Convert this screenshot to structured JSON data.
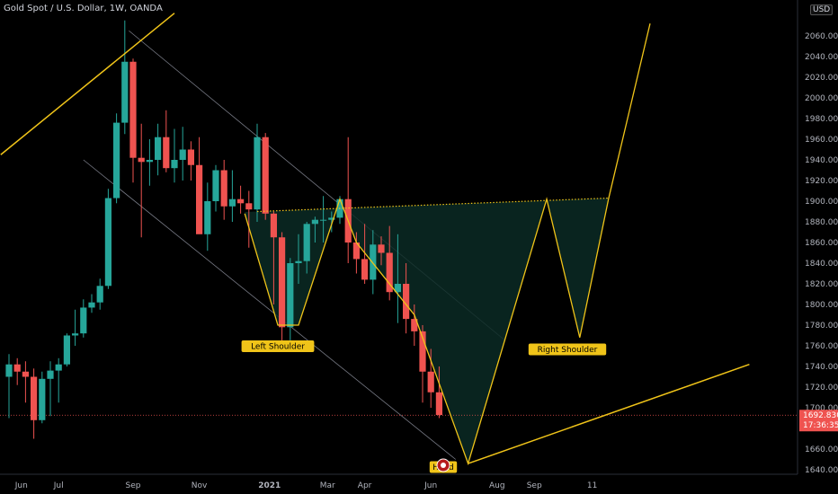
{
  "header": {
    "title": "Gold Spot / U.S. Dollar, 1W, OANDA",
    "currency": "USD"
  },
  "chart_data": {
    "type": "candlestick",
    "title": "Gold Spot / U.S. Dollar, 1W, OANDA",
    "y_axis": {
      "ticks": [
        1640,
        1660,
        1680,
        1700,
        1720,
        1740,
        1760,
        1780,
        1800,
        1820,
        1840,
        1860,
        1880,
        1900,
        1920,
        1940,
        1960,
        1980,
        2000,
        2020,
        2040,
        2060
      ],
      "tick_labels": [
        "1640.000",
        "1660.000",
        "1680.000",
        "1700.000",
        "1720.000",
        "1740.000",
        "1760.000",
        "1780.000",
        "1800.000",
        "1820.000",
        "1840.000",
        "1860.000",
        "1880.000",
        "1900.000",
        "1920.000",
        "1940.000",
        "1960.000",
        "1980.000",
        "2000.000",
        "2020.000",
        "2040.000",
        "2060.000"
      ],
      "range": [
        1633,
        2082
      ]
    },
    "x_axis": {
      "tick_labels": [
        "Jun",
        "Jul",
        "Sep",
        "Nov",
        "2021",
        "Mar",
        "Apr",
        "Jun",
        "Aug",
        "Sep",
        "11"
      ],
      "tick_weeks": [
        3,
        12,
        30,
        46,
        63,
        77,
        86,
        102,
        118,
        127,
        141
      ]
    },
    "current_price": {
      "value": 1692.83,
      "label": "1692.830",
      "countdown": "17:36:35",
      "color": "#ef5350"
    },
    "colors": {
      "up": "#26a69a",
      "down": "#ef5350",
      "pattern": "#f0c419",
      "channel": "#787b86"
    },
    "candles": [
      {
        "w": 0,
        "o": 1730,
        "h": 1752,
        "l": 1690,
        "c": 1742
      },
      {
        "w": 2,
        "o": 1742,
        "h": 1748,
        "l": 1722,
        "c": 1735
      },
      {
        "w": 4,
        "o": 1735,
        "h": 1745,
        "l": 1705,
        "c": 1730
      },
      {
        "w": 6,
        "o": 1730,
        "h": 1738,
        "l": 1670,
        "c": 1688
      },
      {
        "w": 8,
        "o": 1688,
        "h": 1735,
        "l": 1685,
        "c": 1728
      },
      {
        "w": 10,
        "o": 1728,
        "h": 1745,
        "l": 1692,
        "c": 1736
      },
      {
        "w": 12,
        "o": 1736,
        "h": 1748,
        "l": 1705,
        "c": 1742
      },
      {
        "w": 14,
        "o": 1742,
        "h": 1772,
        "l": 1740,
        "c": 1770
      },
      {
        "w": 16,
        "o": 1770,
        "h": 1795,
        "l": 1760,
        "c": 1772
      },
      {
        "w": 18,
        "o": 1772,
        "h": 1805,
        "l": 1768,
        "c": 1797
      },
      {
        "w": 20,
        "o": 1797,
        "h": 1810,
        "l": 1792,
        "c": 1802
      },
      {
        "w": 22,
        "o": 1802,
        "h": 1825,
        "l": 1795,
        "c": 1818
      },
      {
        "w": 24,
        "o": 1818,
        "h": 1912,
        "l": 1815,
        "c": 1903
      },
      {
        "w": 26,
        "o": 1903,
        "h": 1985,
        "l": 1898,
        "c": 1976
      },
      {
        "w": 28,
        "o": 1976,
        "h": 2075,
        "l": 1965,
        "c": 2035
      },
      {
        "w": 30,
        "o": 2035,
        "h": 2038,
        "l": 1918,
        "c": 1942
      },
      {
        "w": 32,
        "o": 1942,
        "h": 1975,
        "l": 1865,
        "c": 1938
      },
      {
        "w": 34,
        "o": 1938,
        "h": 1960,
        "l": 1915,
        "c": 1940
      },
      {
        "w": 36,
        "o": 1940,
        "h": 1975,
        "l": 1925,
        "c": 1962
      },
      {
        "w": 38,
        "o": 1962,
        "h": 1988,
        "l": 1928,
        "c": 1932
      },
      {
        "w": 40,
        "o": 1932,
        "h": 1970,
        "l": 1918,
        "c": 1940
      },
      {
        "w": 42,
        "o": 1940,
        "h": 1972,
        "l": 1920,
        "c": 1950
      },
      {
        "w": 44,
        "o": 1950,
        "h": 1958,
        "l": 1920,
        "c": 1935
      },
      {
        "w": 46,
        "o": 1935,
        "h": 1962,
        "l": 1870,
        "c": 1868
      },
      {
        "w": 48,
        "o": 1868,
        "h": 1918,
        "l": 1852,
        "c": 1900
      },
      {
        "w": 50,
        "o": 1900,
        "h": 1935,
        "l": 1890,
        "c": 1930
      },
      {
        "w": 52,
        "o": 1930,
        "h": 1940,
        "l": 1882,
        "c": 1895
      },
      {
        "w": 54,
        "o": 1895,
        "h": 1930,
        "l": 1880,
        "c": 1902
      },
      {
        "w": 56,
        "o": 1902,
        "h": 1915,
        "l": 1888,
        "c": 1898
      },
      {
        "w": 58,
        "o": 1898,
        "h": 1910,
        "l": 1855,
        "c": 1892
      },
      {
        "w": 60,
        "o": 1892,
        "h": 1975,
        "l": 1880,
        "c": 1962
      },
      {
        "w": 62,
        "o": 1962,
        "h": 1966,
        "l": 1882,
        "c": 1888
      },
      {
        "w": 64,
        "o": 1888,
        "h": 1890,
        "l": 1800,
        "c": 1865
      },
      {
        "w": 66,
        "o": 1865,
        "h": 1870,
        "l": 1760,
        "c": 1778
      },
      {
        "w": 68,
        "o": 1778,
        "h": 1845,
        "l": 1765,
        "c": 1840
      },
      {
        "w": 70,
        "o": 1840,
        "h": 1868,
        "l": 1820,
        "c": 1842
      },
      {
        "w": 72,
        "o": 1842,
        "h": 1880,
        "l": 1830,
        "c": 1878
      },
      {
        "w": 74,
        "o": 1878,
        "h": 1885,
        "l": 1860,
        "c": 1882
      },
      {
        "w": 76,
        "o": 1882,
        "h": 1905,
        "l": 1860,
        "c": 1882
      },
      {
        "w": 78,
        "o": 1882,
        "h": 1890,
        "l": 1870,
        "c": 1884
      },
      {
        "w": 80,
        "o": 1884,
        "h": 1905,
        "l": 1878,
        "c": 1902
      },
      {
        "w": 82,
        "o": 1902,
        "h": 1962,
        "l": 1840,
        "c": 1860
      },
      {
        "w": 84,
        "o": 1860,
        "h": 1870,
        "l": 1830,
        "c": 1844
      },
      {
        "w": 86,
        "o": 1844,
        "h": 1878,
        "l": 1820,
        "c": 1824
      },
      {
        "w": 88,
        "o": 1824,
        "h": 1872,
        "l": 1810,
        "c": 1858
      },
      {
        "w": 90,
        "o": 1858,
        "h": 1866,
        "l": 1838,
        "c": 1850
      },
      {
        "w": 92,
        "o": 1850,
        "h": 1876,
        "l": 1804,
        "c": 1812
      },
      {
        "w": 94,
        "o": 1812,
        "h": 1868,
        "l": 1782,
        "c": 1820
      },
      {
        "w": 96,
        "o": 1820,
        "h": 1840,
        "l": 1772,
        "c": 1786
      },
      {
        "w": 98,
        "o": 1786,
        "h": 1800,
        "l": 1760,
        "c": 1774
      },
      {
        "w": 100,
        "o": 1774,
        "h": 1780,
        "l": 1705,
        "c": 1735
      },
      {
        "w": 102,
        "o": 1735,
        "h": 1757,
        "l": 1700,
        "c": 1715
      },
      {
        "w": 104,
        "o": 1715,
        "h": 1740,
        "l": 1690,
        "c": 1693
      }
    ],
    "annotations": [
      {
        "text": "Left Shoulder",
        "w": 65,
        "price": 1760
      },
      {
        "text": "Head",
        "w": 105,
        "price": 1643
      },
      {
        "text": "Right Shoulder",
        "w": 135,
        "price": 1757
      }
    ],
    "pattern_path": [
      {
        "w": 57,
        "p": 1888
      },
      {
        "w": 65,
        "p": 1780
      },
      {
        "w": 70,
        "p": 1780
      },
      {
        "w": 80,
        "p": 1902
      },
      {
        "w": 84,
        "p": 1860
      },
      {
        "w": 98,
        "p": 1790
      },
      {
        "w": 111,
        "p": 1646
      },
      {
        "w": 130,
        "p": 1902
      },
      {
        "w": 138,
        "p": 1768
      },
      {
        "w": 145,
        "p": 1903
      },
      {
        "w": 155,
        "p": 2072
      }
    ],
    "neckline": [
      {
        "w": 60,
        "p": 1890
      },
      {
        "w": 145,
        "p": 1903
      }
    ],
    "trendlines": [
      {
        "name": "upper-yellow",
        "points": [
          {
            "w": -2,
            "p": 1945
          },
          {
            "w": 40,
            "p": 2082
          }
        ]
      },
      {
        "name": "lower-yellow",
        "points": [
          {
            "w": 111,
            "p": 1646
          },
          {
            "w": 179,
            "p": 1742
          }
        ]
      },
      {
        "name": "channel-upper",
        "points": [
          {
            "w": 29,
            "p": 2065
          },
          {
            "w": 120,
            "p": 1765
          }
        ]
      },
      {
        "name": "channel-lower",
        "points": [
          {
            "w": 18,
            "p": 1940
          },
          {
            "w": 108,
            "p": 1650
          }
        ]
      }
    ]
  }
}
